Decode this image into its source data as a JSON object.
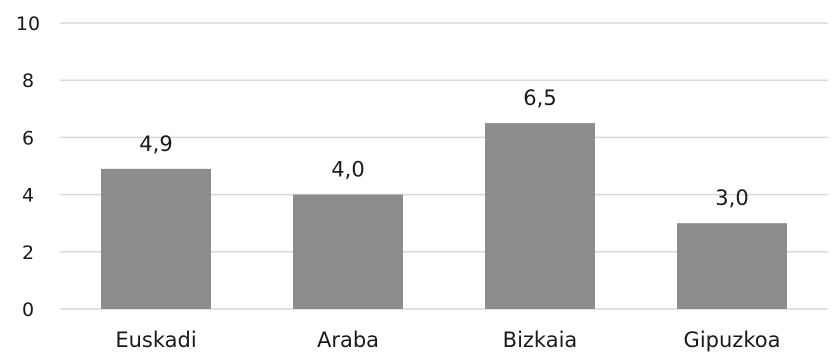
{
  "chart_data": {
    "type": "bar",
    "categories": [
      "Euskadi",
      "Araba",
      "Bizkaia",
      "Gipuzkoa"
    ],
    "values": [
      4.9,
      4.0,
      6.5,
      3.0
    ],
    "data_labels": [
      "4,9",
      "4,0",
      "6,5",
      "3,0"
    ],
    "ylim": [
      0,
      10
    ],
    "yticks": [
      0,
      2,
      4,
      6,
      8,
      10
    ],
    "ytick_labels": [
      "0",
      "2",
      "4",
      "6",
      "8",
      "10"
    ],
    "grid": true,
    "bar_color": "#8c8c8c",
    "grid_color": "#d9d9d9"
  }
}
